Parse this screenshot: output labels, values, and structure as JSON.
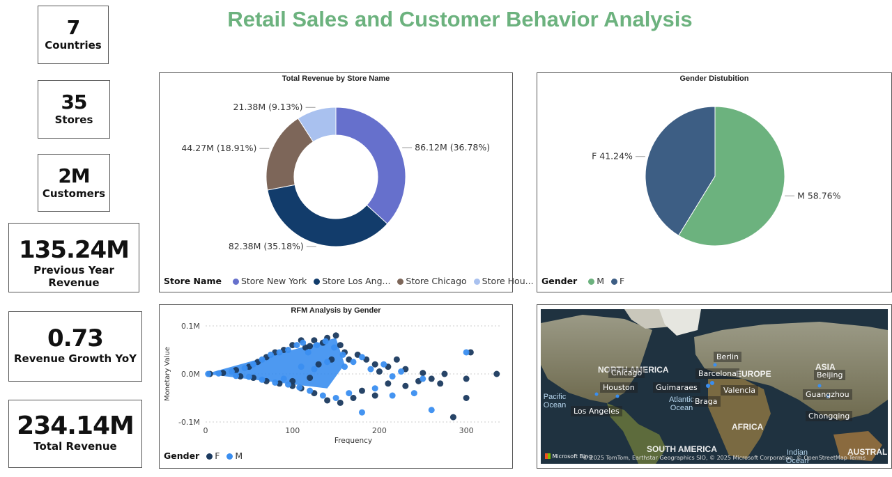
{
  "title": "Retail Sales and Customer Behavior Analysis",
  "kpis": {
    "countries": {
      "value": "7",
      "label": "Countries"
    },
    "stores": {
      "value": "35",
      "label": "Stores"
    },
    "customers": {
      "value": "2M",
      "label": "Customers"
    },
    "prev_revenue": {
      "value": "135.24M",
      "label": "Previous Year Revenue"
    },
    "growth": {
      "value": "0.73",
      "label": "Revenue Growth YoY"
    },
    "total_revenue": {
      "value": "234.14M",
      "label": "Total Revenue"
    }
  },
  "colors": {
    "title": "#6cb27e",
    "store_new_york": "#6670cc",
    "store_los_angeles": "#123c6b",
    "store_chicago": "#7d6659",
    "store_houston": "#a9c1ef",
    "gender_m": "#6cb27e",
    "gender_f": "#3d5e84",
    "scatter_f": "#1b3a5f",
    "scatter_m": "#3a8ef0"
  },
  "chart_data": [
    {
      "type": "pie",
      "variant": "donut",
      "title": "Total Revenue by Store Name",
      "legend_title": "Store Name",
      "legend_position": "bottom-left",
      "categories": [
        "Store New York",
        "Store Los Ang...",
        "Store Chicago",
        "Store Hou..."
      ],
      "values": [
        86.12,
        82.38,
        44.27,
        21.38
      ],
      "data_labels": [
        "86.12M (36.78%)",
        "82.38M (35.18%)",
        "44.27M (18.91%)",
        "21.38M (9.13%)"
      ]
    },
    {
      "type": "pie",
      "title": "Gender Distubition",
      "legend_title": "Gender",
      "legend_position": "bottom-left",
      "categories": [
        "M",
        "F"
      ],
      "values": [
        58.76,
        41.24
      ],
      "data_labels": [
        "M 58.76%",
        "F 41.24%"
      ]
    },
    {
      "type": "scatter",
      "title": "RFM Analysis by Gender",
      "xlabel": "Frequency",
      "ylabel": "Monetary Value",
      "xlim": [
        0,
        340
      ],
      "ylim": [
        -0.1,
        0.1
      ],
      "x_ticks": [
        "0",
        "100",
        "200",
        "300"
      ],
      "y_ticks": [
        "0.1M",
        "0.0M",
        "-0.1M"
      ],
      "legend_title": "Gender",
      "legend_position": "bottom-left",
      "series": [
        {
          "name": "F",
          "points": [
            [
              5,
              0
            ],
            [
              20,
              0.002
            ],
            [
              35,
              0.008
            ],
            [
              50,
              0.015
            ],
            [
              60,
              0.025
            ],
            [
              70,
              0.035
            ],
            [
              80,
              0.045
            ],
            [
              90,
              0.05
            ],
            [
              100,
              0.06
            ],
            [
              110,
              0.07
            ],
            [
              115,
              0.055
            ],
            [
              120,
              0.058
            ],
            [
              125,
              0.07
            ],
            [
              135,
              0.065
            ],
            [
              140,
              0.075
            ],
            [
              150,
              0.08
            ],
            [
              155,
              0.06
            ],
            [
              160,
              0.045
            ],
            [
              175,
              0.04
            ],
            [
              185,
              0.03
            ],
            [
              195,
              0.02
            ],
            [
              210,
              0.015
            ],
            [
              230,
              0.01
            ],
            [
              250,
              0.002
            ],
            [
              275,
              0
            ],
            [
              300,
              -0.01
            ],
            [
              335,
              0
            ],
            [
              40,
              -0.005
            ],
            [
              55,
              -0.008
            ],
            [
              70,
              -0.015
            ],
            [
              85,
              -0.02
            ],
            [
              100,
              -0.025
            ],
            [
              110,
              -0.03
            ],
            [
              125,
              -0.04
            ],
            [
              140,
              -0.055
            ],
            [
              155,
              -0.06
            ],
            [
              170,
              -0.05
            ],
            [
              180,
              -0.035
            ],
            [
              195,
              -0.045
            ],
            [
              210,
              -0.02
            ],
            [
              230,
              -0.025
            ],
            [
              245,
              -0.015
            ],
            [
              260,
              -0.01
            ],
            [
              270,
              -0.02
            ],
            [
              285,
              -0.09
            ],
            [
              300,
              -0.05
            ],
            [
              305,
              0.045
            ],
            [
              130,
              0.02
            ],
            [
              145,
              0.03
            ],
            [
              165,
              0.03
            ],
            [
              200,
              0.005
            ],
            [
              220,
              0.03
            ],
            [
              100,
              -0.015
            ],
            [
              120,
              -0.008
            ]
          ]
        },
        {
          "name": "M",
          "points": [
            [
              3,
              0
            ],
            [
              15,
              0.001
            ],
            [
              30,
              0.005
            ],
            [
              45,
              0.012
            ],
            [
              55,
              0.02
            ],
            [
              65,
              0.03
            ],
            [
              75,
              0.04
            ],
            [
              85,
              0.045
            ],
            [
              95,
              0.05
            ],
            [
              105,
              0.06
            ],
            [
              112,
              0.065
            ],
            [
              118,
              0.045
            ],
            [
              128,
              0.06
            ],
            [
              138,
              0.068
            ],
            [
              148,
              0.055
            ],
            [
              158,
              0.04
            ],
            [
              170,
              0.025
            ],
            [
              180,
              0.035
            ],
            [
              190,
              0.01
            ],
            [
              205,
              0.02
            ],
            [
              215,
              -0.005
            ],
            [
              225,
              0.005
            ],
            [
              250,
              -0.01
            ],
            [
              260,
              -0.075
            ],
            [
              300,
              0.045
            ],
            [
              35,
              -0.004
            ],
            [
              50,
              -0.006
            ],
            [
              65,
              -0.012
            ],
            [
              80,
              -0.018
            ],
            [
              95,
              -0.022
            ],
            [
              108,
              -0.028
            ],
            [
              120,
              -0.035
            ],
            [
              135,
              -0.045
            ],
            [
              150,
              -0.05
            ],
            [
              165,
              -0.04
            ],
            [
              180,
              -0.08
            ],
            [
              195,
              -0.03
            ],
            [
              215,
              -0.045
            ],
            [
              240,
              -0.04
            ],
            [
              110,
              0.015
            ],
            [
              125,
              0.01
            ],
            [
              140,
              0.025
            ],
            [
              160,
              0.015
            ],
            [
              90,
              -0.01
            ]
          ]
        }
      ]
    }
  ],
  "map": {
    "cities": [
      "Chicago",
      "Houston",
      "Los Angeles",
      "Guimaraes",
      "Barcelona",
      "Berlin",
      "Valencia",
      "Braga",
      "Beijing",
      "Guangzhou",
      "Chongqing"
    ],
    "regions": [
      "NORTH AMERICA",
      "EUROPE",
      "ASIA",
      "AFRICA",
      "SOUTH AMERICA",
      "AUSTRALIA"
    ],
    "oceans": [
      "Pacific Ocean",
      "Atlantic Ocean",
      "Indian Ocean"
    ],
    "provider": "Microsoft Bing",
    "attribution": "© 2025 TomTom, Earthstar Geographics SIO, © 2025 Microsoft Corporation, © OpenStreetMap Terms"
  }
}
